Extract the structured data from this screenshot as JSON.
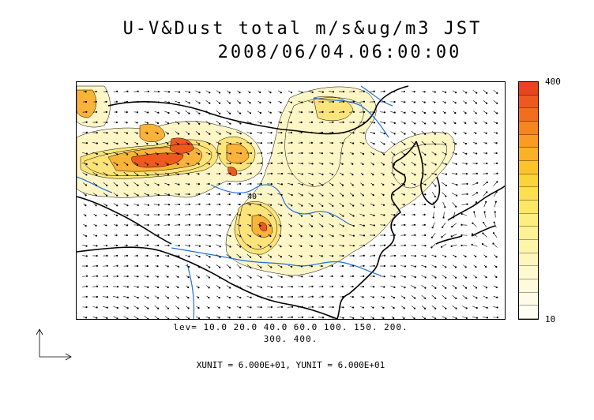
{
  "title": {
    "line1": "U-V&Dust total m/s&ug/m3 JST",
    "line2": "2008/06/04.06:00:00"
  },
  "colorbar": {
    "max_label": "400",
    "min_label": "10",
    "colors": [
      "#e8441e",
      "#ee5a1e",
      "#f26e1e",
      "#f5861f",
      "#f89c22",
      "#fab126",
      "#fbc42c",
      "#fcd43a",
      "#fde04f",
      "#fde866",
      "#fdee7e",
      "#fdf295",
      "#fef5aa",
      "#fef7bd",
      "#fef9ce",
      "#fefbdd",
      "#fefce8",
      "#fffdf2"
    ]
  },
  "legend": {
    "levels_line1": "lev= 10.0 20.0 40.0 60.0 100. 150. 200.",
    "levels_line2": "300. 400.",
    "units": "XUNIT = 6.000E+01, YUNIT = 6.000E+01"
  },
  "map": {
    "contour_label": "40",
    "palette": {
      "coast": "#000000",
      "river": "#1e6fe0",
      "vector": "#000000",
      "low": "#fef6c6",
      "mid": "#fde47a",
      "high": "#fab33a",
      "peak": "#ee5a1e"
    }
  }
}
